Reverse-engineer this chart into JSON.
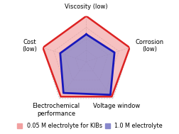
{
  "categories": [
    "Viscosity (low)",
    "Corrosion\n(low)",
    "Voltage window",
    "Electrochemical\nperformance",
    "Cost\n(low)"
  ],
  "series": [
    {
      "label": "0.05 M electrolyte for KIBs",
      "values": [
        1.0,
        1.0,
        0.95,
        0.95,
        1.0
      ],
      "fill_color": "#f2a0a0",
      "edge_color": "#dd2222",
      "linewidth": 1.8,
      "alpha": 0.65
    },
    {
      "label": "1.0 M electrolyte",
      "values": [
        0.6,
        0.65,
        0.9,
        0.85,
        0.6
      ],
      "fill_color": "#8888cc",
      "edge_color": "#1818bb",
      "linewidth": 2.0,
      "alpha": 0.75
    }
  ],
  "n_gridlines": 4,
  "grid_color": "#bbbbbb",
  "grid_style": "--",
  "background_color": "#ffffff",
  "label_fontsize": 6.0,
  "legend_fontsize": 5.8
}
